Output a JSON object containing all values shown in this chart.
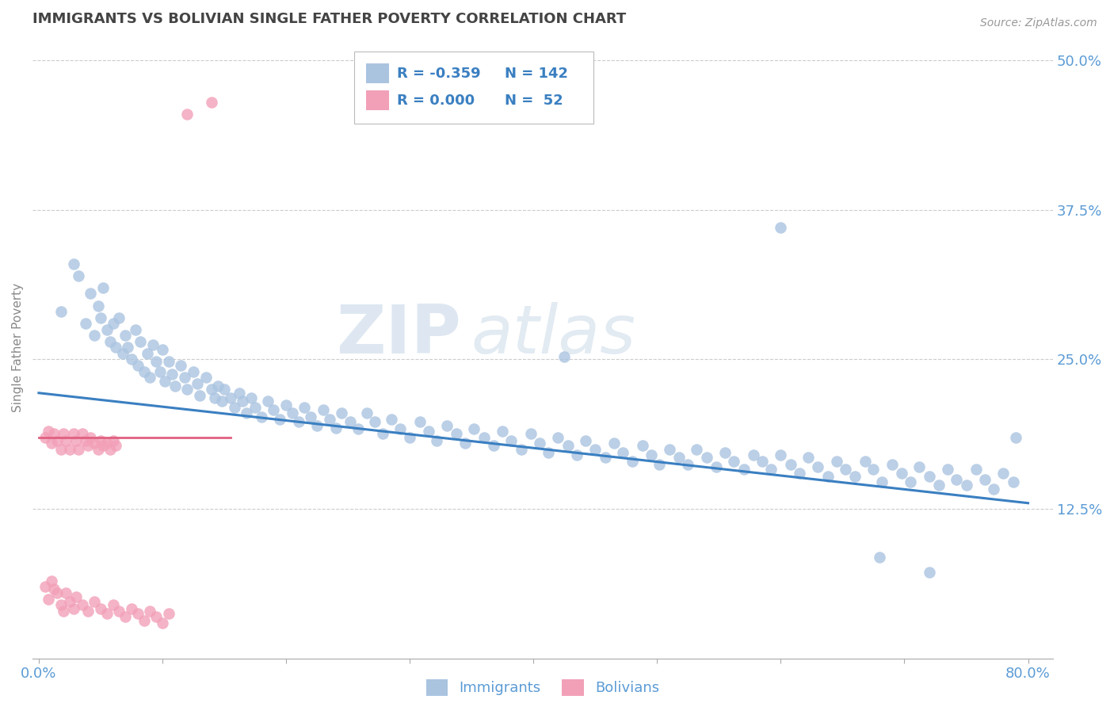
{
  "title": "IMMIGRANTS VS BOLIVIAN SINGLE FATHER POVERTY CORRELATION CHART",
  "source": "Source: ZipAtlas.com",
  "ylabel": "Single Father Poverty",
  "xlim": [
    -0.005,
    0.82
  ],
  "ylim": [
    0.0,
    0.52
  ],
  "xticks": [
    0.0,
    0.8
  ],
  "xticklabels": [
    "0.0%",
    "80.0%"
  ],
  "ytick_positions": [
    0.125,
    0.25,
    0.375,
    0.5
  ],
  "ytick_labels": [
    "12.5%",
    "25.0%",
    "37.5%",
    "50.0%"
  ],
  "blue_color": "#aac4e0",
  "pink_color": "#f2a0b8",
  "blue_line_color": "#3a7fc1",
  "pink_line_color": "#e06080",
  "legend_R1": "R = -0.359",
  "legend_N1": "N = 142",
  "legend_R2": "R = 0.000",
  "legend_N2": "N =  52",
  "legend_label1": "Immigrants",
  "legend_label2": "Bolivians",
  "watermark_zip": "ZIP",
  "watermark_atlas": "atlas",
  "title_color": "#444444",
  "tick_label_color": "#5b9bd5",
  "ylabel_color": "#888888",
  "immigrants_x": [
    0.018,
    0.028,
    0.032,
    0.038,
    0.042,
    0.045,
    0.048,
    0.05,
    0.052,
    0.055,
    0.058,
    0.06,
    0.062,
    0.065,
    0.068,
    0.07,
    0.072,
    0.075,
    0.078,
    0.08,
    0.082,
    0.085,
    0.088,
    0.09,
    0.092,
    0.095,
    0.098,
    0.1,
    0.102,
    0.105,
    0.108,
    0.11,
    0.115,
    0.118,
    0.12,
    0.125,
    0.128,
    0.13,
    0.135,
    0.14,
    0.142,
    0.145,
    0.148,
    0.15,
    0.155,
    0.158,
    0.162,
    0.165,
    0.168,
    0.172,
    0.175,
    0.18,
    0.185,
    0.19,
    0.195,
    0.2,
    0.205,
    0.21,
    0.215,
    0.22,
    0.225,
    0.23,
    0.235,
    0.24,
    0.245,
    0.252,
    0.258,
    0.265,
    0.272,
    0.278,
    0.285,
    0.292,
    0.3,
    0.308,
    0.315,
    0.322,
    0.33,
    0.338,
    0.345,
    0.352,
    0.36,
    0.368,
    0.375,
    0.382,
    0.39,
    0.398,
    0.405,
    0.412,
    0.42,
    0.428,
    0.435,
    0.442,
    0.45,
    0.458,
    0.465,
    0.472,
    0.48,
    0.488,
    0.495,
    0.502,
    0.51,
    0.518,
    0.525,
    0.532,
    0.54,
    0.548,
    0.555,
    0.562,
    0.57,
    0.578,
    0.585,
    0.592,
    0.6,
    0.608,
    0.615,
    0.622,
    0.63,
    0.638,
    0.645,
    0.652,
    0.66,
    0.668,
    0.675,
    0.682,
    0.69,
    0.698,
    0.705,
    0.712,
    0.72,
    0.728,
    0.735,
    0.742,
    0.75,
    0.758,
    0.765,
    0.772,
    0.78,
    0.788,
    0.425,
    0.6,
    0.68,
    0.72,
    0.79
  ],
  "immigrants_y": [
    0.29,
    0.33,
    0.32,
    0.28,
    0.305,
    0.27,
    0.295,
    0.285,
    0.31,
    0.275,
    0.265,
    0.28,
    0.26,
    0.285,
    0.255,
    0.27,
    0.26,
    0.25,
    0.275,
    0.245,
    0.265,
    0.24,
    0.255,
    0.235,
    0.262,
    0.248,
    0.24,
    0.258,
    0.232,
    0.248,
    0.238,
    0.228,
    0.245,
    0.235,
    0.225,
    0.24,
    0.23,
    0.22,
    0.235,
    0.225,
    0.218,
    0.228,
    0.215,
    0.225,
    0.218,
    0.21,
    0.222,
    0.215,
    0.205,
    0.218,
    0.21,
    0.202,
    0.215,
    0.208,
    0.2,
    0.212,
    0.205,
    0.198,
    0.21,
    0.202,
    0.195,
    0.208,
    0.2,
    0.193,
    0.205,
    0.198,
    0.192,
    0.205,
    0.198,
    0.188,
    0.2,
    0.192,
    0.185,
    0.198,
    0.19,
    0.182,
    0.195,
    0.188,
    0.18,
    0.192,
    0.185,
    0.178,
    0.19,
    0.182,
    0.175,
    0.188,
    0.18,
    0.172,
    0.185,
    0.178,
    0.17,
    0.182,
    0.175,
    0.168,
    0.18,
    0.172,
    0.165,
    0.178,
    0.17,
    0.162,
    0.175,
    0.168,
    0.162,
    0.175,
    0.168,
    0.16,
    0.172,
    0.165,
    0.158,
    0.17,
    0.165,
    0.158,
    0.17,
    0.162,
    0.155,
    0.168,
    0.16,
    0.152,
    0.165,
    0.158,
    0.152,
    0.165,
    0.158,
    0.148,
    0.162,
    0.155,
    0.148,
    0.16,
    0.152,
    0.145,
    0.158,
    0.15,
    0.145,
    0.158,
    0.15,
    0.142,
    0.155,
    0.148,
    0.252,
    0.36,
    0.085,
    0.072,
    0.185
  ],
  "bolivians_x": [
    0.005,
    0.008,
    0.01,
    0.012,
    0.015,
    0.018,
    0.02,
    0.022,
    0.025,
    0.028,
    0.03,
    0.032,
    0.035,
    0.038,
    0.04,
    0.042,
    0.045,
    0.048,
    0.05,
    0.052,
    0.055,
    0.058,
    0.06,
    0.062,
    0.005,
    0.008,
    0.01,
    0.012,
    0.015,
    0.018,
    0.02,
    0.022,
    0.025,
    0.028,
    0.03,
    0.035,
    0.04,
    0.045,
    0.05,
    0.055,
    0.06,
    0.065,
    0.07,
    0.075,
    0.08,
    0.085,
    0.09,
    0.095,
    0.1,
    0.105,
    0.12,
    0.14
  ],
  "bolivians_y": [
    0.185,
    0.19,
    0.18,
    0.188,
    0.182,
    0.175,
    0.188,
    0.182,
    0.175,
    0.188,
    0.182,
    0.175,
    0.188,
    0.182,
    0.178,
    0.185,
    0.18,
    0.175,
    0.182,
    0.178,
    0.18,
    0.175,
    0.182,
    0.178,
    0.06,
    0.05,
    0.065,
    0.058,
    0.055,
    0.045,
    0.04,
    0.055,
    0.048,
    0.042,
    0.052,
    0.045,
    0.04,
    0.048,
    0.042,
    0.038,
    0.045,
    0.04,
    0.035,
    0.042,
    0.038,
    0.032,
    0.04,
    0.035,
    0.03,
    0.038,
    0.455,
    0.465
  ]
}
